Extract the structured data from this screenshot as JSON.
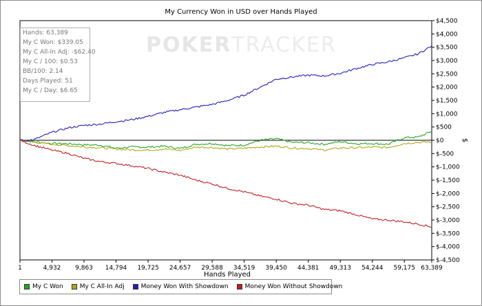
{
  "stats": [
    "Hands: 63,389",
    "My C Won: $339.05",
    "My C All-In Adj: -$62.40",
    "My C / 100: $0.53",
    "BB/100: 2.14",
    "Days Played: 51",
    "My C / Day: $6.65"
  ],
  "watermark": {
    "part1": "POKER",
    "part2": "TRACKER"
  },
  "chart_data": {
    "type": "line",
    "title": "My Currency Won in USD over Hands Played",
    "xlabel": "Hands Played",
    "ylabel": "$",
    "xlim": [
      1,
      63389
    ],
    "ylim": [
      -4500,
      4500
    ],
    "x_ticks": [
      1,
      4932,
      9863,
      14794,
      19725,
      24657,
      29588,
      34519,
      39450,
      44381,
      49313,
      54244,
      59175,
      63389
    ],
    "x_tick_labels": [
      "1",
      "4,932",
      "9,863",
      "14,794",
      "19,725",
      "24,657",
      "29,588",
      "34,519",
      "39,450",
      "44,381",
      "49,313",
      "54,244",
      "59,175",
      "63,389"
    ],
    "y_ticks": [
      4500,
      4000,
      3500,
      3000,
      2500,
      2000,
      1500,
      1000,
      500,
      0,
      -500,
      -1000,
      -1500,
      -2000,
      -2500,
      -3000,
      -3500,
      -4000,
      -4500
    ],
    "y_tick_labels": [
      "$4,500",
      "$4,000",
      "$3,500",
      "$3,000",
      "$2,500",
      "$2,000",
      "$1,500",
      "$1,000",
      "$500",
      "$0",
      "$-500",
      "$-1,000",
      "$-1,500",
      "$-2,000",
      "$-2,500",
      "$-3,000",
      "$-3,500",
      "$-4,000",
      "$-4,500"
    ],
    "legend_position": "bottom",
    "grid": false,
    "x": [
      1,
      2000,
      4932,
      7500,
      9863,
      12300,
      14794,
      17300,
      19725,
      22200,
      24657,
      27100,
      29588,
      32000,
      34519,
      37000,
      39450,
      41900,
      44381,
      46800,
      49313,
      51800,
      54244,
      56700,
      59175,
      61300,
      63389
    ],
    "series": [
      {
        "name": "My C Won",
        "color": "#22a822",
        "values": [
          0,
          -50,
          -120,
          -130,
          -170,
          -180,
          -300,
          -250,
          -260,
          -220,
          -310,
          -150,
          -120,
          -200,
          -180,
          0,
          60,
          -80,
          -90,
          -150,
          -50,
          -130,
          -120,
          -150,
          100,
          120,
          339
        ]
      },
      {
        "name": "My C All-In Adj",
        "color": "#b0a818",
        "values": [
          0,
          -70,
          -150,
          -200,
          -250,
          -280,
          -330,
          -360,
          -370,
          -330,
          -380,
          -260,
          -270,
          -330,
          -300,
          -250,
          -220,
          -290,
          -310,
          -370,
          -290,
          -280,
          -260,
          -270,
          -120,
          -80,
          -62
        ]
      },
      {
        "name": "Money Won With Showdown",
        "color": "#2020b8",
        "values": [
          0,
          10,
          300,
          470,
          560,
          610,
          700,
          780,
          900,
          1050,
          1150,
          1250,
          1350,
          1500,
          1700,
          2000,
          2300,
          2380,
          2450,
          2420,
          2520,
          2700,
          2850,
          2950,
          3100,
          3250,
          3550
        ]
      },
      {
        "name": "Money Won Without Showdown",
        "color": "#c02020",
        "values": [
          0,
          -180,
          -370,
          -500,
          -680,
          -800,
          -870,
          -960,
          -1060,
          -1200,
          -1310,
          -1500,
          -1640,
          -1810,
          -1940,
          -2100,
          -2210,
          -2370,
          -2440,
          -2600,
          -2650,
          -2800,
          -2960,
          -3000,
          -3070,
          -3150,
          -3260
        ]
      }
    ]
  }
}
